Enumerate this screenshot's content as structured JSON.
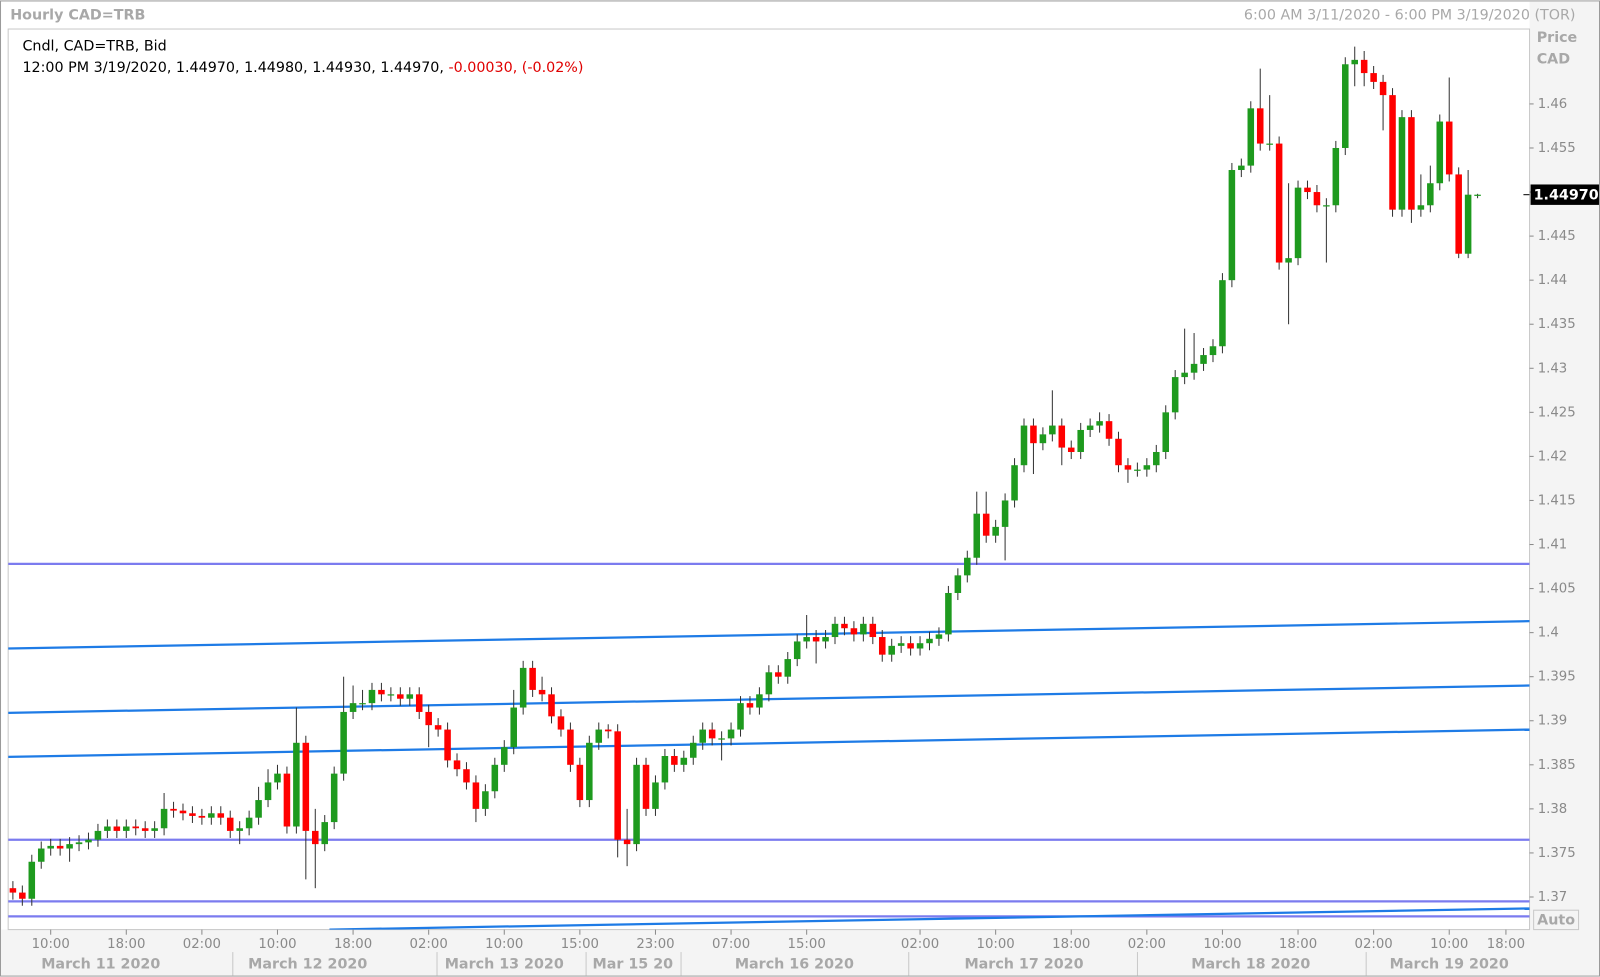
{
  "chart_data": {
    "type": "candlestick",
    "title": "Hourly CAD=TRB",
    "range_text": "6:00 AM 3/11/2020 - 6:00 PM 3/19/2020 (TOR)",
    "legend_text": "Cndl, CAD=TRB, Bid",
    "ohlc_text": "12:00 PM 3/19/2020, 1.44970, 1.44980, 1.44930, 1.44970,",
    "change_text": "-0.00030, (-0.02%)",
    "y_axis_label": [
      "Price",
      "CAD"
    ],
    "auto_button": "Auto",
    "up_color": "#1e9a1e",
    "down_color": "#ff0000",
    "xlim": [
      -0.5,
      160.5
    ],
    "ylim": [
      1.3663,
      1.4685
    ],
    "yticks": [
      1.37,
      1.375,
      1.38,
      1.385,
      1.39,
      1.395,
      1.4,
      1.405,
      1.41,
      1.415,
      1.42,
      1.425,
      1.43,
      1.435,
      1.44,
      1.445,
      1.45,
      1.455,
      1.46
    ],
    "xticks": [
      {
        "value": 4,
        "label": "10:00"
      },
      {
        "value": 12,
        "label": "18:00"
      },
      {
        "value": 20,
        "label": "02:00"
      },
      {
        "value": 28,
        "label": "10:00"
      },
      {
        "value": 36,
        "label": "18:00"
      },
      {
        "value": 44,
        "label": "02:00"
      },
      {
        "value": 52,
        "label": "10:00"
      },
      {
        "value": 60,
        "label": "15:00"
      },
      {
        "value": 68,
        "label": "23:00"
      },
      {
        "value": 76,
        "label": "07:00"
      },
      {
        "value": 84,
        "label": "15:00"
      },
      {
        "value": 96,
        "label": "02:00"
      },
      {
        "value": 104,
        "label": "10:00"
      },
      {
        "value": 112,
        "label": "18:00"
      },
      {
        "value": 120,
        "label": "02:00"
      },
      {
        "value": 128,
        "label": "10:00"
      },
      {
        "value": 136,
        "label": "18:00"
      },
      {
        "value": 144,
        "label": "02:00"
      },
      {
        "value": 152,
        "label": "10:00"
      },
      {
        "value": 158,
        "label": "18:00"
      }
    ],
    "date_labels": [
      {
        "value": 9.3,
        "label": "March 11 2020"
      },
      {
        "value": 31.2,
        "label": "March 12 2020"
      },
      {
        "value": 52,
        "label": "March 13 2020"
      },
      {
        "value": 65.6,
        "label": "Mar 15 20"
      },
      {
        "value": 82.7,
        "label": "March 16 2020"
      },
      {
        "value": 107,
        "label": "March 17 2020"
      },
      {
        "value": 131,
        "label": "March 18 2020"
      },
      {
        "value": 152,
        "label": "March 19 2020"
      }
    ],
    "last_price": {
      "value": 1.4497,
      "label": "1.44970"
    },
    "open": [
      1.371,
      1.3705,
      1.3698,
      1.374,
      1.3755,
      1.3758,
      1.3755,
      1.376,
      1.3762,
      1.3765,
      1.3775,
      1.378,
      1.3775,
      1.378,
      1.3778,
      1.3775,
      1.3778,
      1.38,
      1.3798,
      1.3795,
      1.3792,
      1.379,
      1.3795,
      1.379,
      1.3775,
      1.3778,
      1.379,
      1.381,
      1.383,
      1.384,
      1.378,
      1.3875,
      1.3775,
      1.376,
      1.3785,
      1.384,
      1.391,
      1.392,
      1.392,
      1.3935,
      1.393,
      1.393,
      1.3925,
      1.393,
      1.391,
      1.3895,
      1.389,
      1.3855,
      1.3845,
      1.383,
      1.38,
      1.382,
      1.385,
      1.387,
      1.3915,
      1.396,
      1.3935,
      1.393,
      1.3905,
      1.389,
      1.385,
      1.381,
      1.3875,
      1.389,
      1.3888,
      1.3765,
      1.376,
      1.385,
      1.38,
      1.383,
      1.386,
      1.385,
      1.3858,
      1.3875,
      1.389,
      1.388,
      1.388,
      1.389,
      1.392,
      1.3915,
      1.393,
      1.3955,
      1.395,
      1.397,
      1.399,
      1.3995,
      1.399,
      1.3995,
      1.401,
      1.4005,
      1.3998,
      1.401,
      1.3995,
      1.3975,
      1.3985,
      1.3988,
      1.3982,
      1.3988,
      1.3993,
      1.3998,
      1.4045,
      1.4065,
      1.4085,
      1.4135,
      1.411,
      1.412,
      1.415,
      1.419,
      1.4235,
      1.4215,
      1.4225,
      1.4235,
      1.421,
      1.4205,
      1.423,
      1.4235,
      1.424,
      1.422,
      1.419,
      1.4185,
      1.4185,
      1.419,
      1.4205,
      1.425,
      1.429,
      1.4295,
      1.4305,
      1.4315,
      1.4325,
      1.44,
      1.4525,
      1.453,
      1.4595,
      1.4555,
      1.4555,
      1.442,
      1.4425,
      1.4505,
      1.45,
      1.4485,
      1.4485,
      1.455,
      1.4645,
      1.465,
      1.4635,
      1.4625,
      1.461,
      1.448,
      1.4585,
      1.448,
      1.4485,
      1.451,
      1.458,
      1.452,
      1.443,
      1.4497
    ],
    "high": [
      1.3718,
      1.3713,
      1.3748,
      1.3763,
      1.3766,
      1.3766,
      1.3768,
      1.377,
      1.3773,
      1.3783,
      1.3788,
      1.3788,
      1.3788,
      1.3788,
      1.3786,
      1.3786,
      1.3818,
      1.3808,
      1.3806,
      1.3803,
      1.38,
      1.3803,
      1.3803,
      1.3798,
      1.3786,
      1.3798,
      1.3825,
      1.3845,
      1.385,
      1.3848,
      1.3915,
      1.3883,
      1.38,
      1.3793,
      1.3848,
      1.395,
      1.394,
      1.3935,
      1.3943,
      1.3943,
      1.3938,
      1.3938,
      1.3938,
      1.3938,
      1.3918,
      1.3903,
      1.3898,
      1.3863,
      1.3853,
      1.3838,
      1.3828,
      1.3858,
      1.3878,
      1.3935,
      1.3968,
      1.3968,
      1.395,
      1.3938,
      1.3913,
      1.3898,
      1.3858,
      1.3883,
      1.3898,
      1.3896,
      1.3896,
      1.38,
      1.3858,
      1.3858,
      1.3838,
      1.3868,
      1.3868,
      1.3866,
      1.3883,
      1.3898,
      1.3898,
      1.3888,
      1.3898,
      1.3928,
      1.3928,
      1.3938,
      1.3963,
      1.3963,
      1.3978,
      1.3998,
      1.402,
      1.4003,
      1.4003,
      1.4018,
      1.4018,
      1.4013,
      1.4018,
      1.4018,
      1.4003,
      1.3993,
      1.3996,
      1.3996,
      1.3996,
      1.4001,
      1.4006,
      1.4053,
      1.4073,
      1.4093,
      1.416,
      1.416,
      1.4128,
      1.4158,
      1.4198,
      1.4243,
      1.4243,
      1.4233,
      1.4275,
      1.4243,
      1.4218,
      1.4238,
      1.4243,
      1.425,
      1.4248,
      1.4228,
      1.4198,
      1.4193,
      1.4198,
      1.4213,
      1.4258,
      1.4298,
      1.4345,
      1.434,
      1.4323,
      1.4333,
      1.4408,
      1.4533,
      1.4538,
      1.4603,
      1.464,
      1.461,
      1.4563,
      1.451,
      1.4513,
      1.4513,
      1.4508,
      1.4493,
      1.4558,
      1.4653,
      1.4665,
      1.466,
      1.4643,
      1.4633,
      1.4618,
      1.4593,
      1.4593,
      1.452,
      1.453,
      1.4588,
      1.463,
      1.4528,
      1.4525,
      1.4498
    ],
    "low": [
      1.3697,
      1.369,
      1.369,
      1.3732,
      1.3747,
      1.3747,
      1.374,
      1.3752,
      1.3754,
      1.3757,
      1.3767,
      1.3767,
      1.3767,
      1.377,
      1.3767,
      1.3767,
      1.377,
      1.379,
      1.3787,
      1.3784,
      1.3782,
      1.3782,
      1.3782,
      1.3767,
      1.376,
      1.377,
      1.3782,
      1.3802,
      1.3822,
      1.3772,
      1.3772,
      1.372,
      1.371,
      1.3752,
      1.3777,
      1.3832,
      1.3902,
      1.3912,
      1.3912,
      1.3922,
      1.3922,
      1.3917,
      1.3917,
      1.3902,
      1.387,
      1.3882,
      1.3847,
      1.3837,
      1.3822,
      1.3785,
      1.3792,
      1.3812,
      1.3842,
      1.3862,
      1.3907,
      1.3927,
      1.3922,
      1.3897,
      1.3882,
      1.3842,
      1.3802,
      1.3802,
      1.3867,
      1.388,
      1.3745,
      1.3735,
      1.3752,
      1.3792,
      1.3792,
      1.3822,
      1.3842,
      1.3842,
      1.385,
      1.3867,
      1.3872,
      1.3855,
      1.3872,
      1.3882,
      1.3907,
      1.3907,
      1.3922,
      1.3942,
      1.3942,
      1.3962,
      1.3982,
      1.3965,
      1.3982,
      1.3987,
      1.3997,
      1.399,
      1.399,
      1.3987,
      1.3967,
      1.3967,
      1.3977,
      1.3974,
      1.3974,
      1.398,
      1.3985,
      1.399,
      1.4037,
      1.4057,
      1.4077,
      1.4102,
      1.4102,
      1.4082,
      1.4142,
      1.4182,
      1.418,
      1.4207,
      1.4217,
      1.419,
      1.4197,
      1.4197,
      1.4222,
      1.4227,
      1.4212,
      1.4182,
      1.417,
      1.4177,
      1.4177,
      1.4182,
      1.4197,
      1.4242,
      1.4282,
      1.4287,
      1.4297,
      1.4307,
      1.4317,
      1.4392,
      1.4517,
      1.4522,
      1.4547,
      1.4547,
      1.4412,
      1.435,
      1.4417,
      1.4492,
      1.4477,
      1.442,
      1.4477,
      1.4542,
      1.462,
      1.462,
      1.4617,
      1.457,
      1.4472,
      1.4472,
      1.4465,
      1.4472,
      1.4477,
      1.4502,
      1.4512,
      1.4425,
      1.4425,
      1.4493
    ],
    "close": [
      1.3705,
      1.3698,
      1.374,
      1.3755,
      1.3758,
      1.3755,
      1.376,
      1.3762,
      1.3765,
      1.3775,
      1.378,
      1.3775,
      1.378,
      1.3778,
      1.3775,
      1.3778,
      1.38,
      1.3798,
      1.3795,
      1.3792,
      1.379,
      1.3795,
      1.379,
      1.3775,
      1.3778,
      1.379,
      1.381,
      1.383,
      1.384,
      1.378,
      1.3875,
      1.3775,
      1.376,
      1.3785,
      1.384,
      1.391,
      1.392,
      1.392,
      1.3935,
      1.393,
      1.393,
      1.3925,
      1.393,
      1.391,
      1.3895,
      1.389,
      1.3855,
      1.3845,
      1.383,
      1.38,
      1.382,
      1.385,
      1.387,
      1.3915,
      1.396,
      1.3935,
      1.393,
      1.3905,
      1.389,
      1.385,
      1.381,
      1.3875,
      1.389,
      1.3888,
      1.3765,
      1.376,
      1.385,
      1.38,
      1.383,
      1.386,
      1.385,
      1.3858,
      1.3875,
      1.389,
      1.388,
      1.388,
      1.389,
      1.392,
      1.3915,
      1.393,
      1.3955,
      1.395,
      1.397,
      1.399,
      1.3995,
      1.399,
      1.3995,
      1.401,
      1.4005,
      1.3998,
      1.401,
      1.3995,
      1.3975,
      1.3985,
      1.3988,
      1.3982,
      1.3988,
      1.3993,
      1.3998,
      1.4045,
      1.4065,
      1.4085,
      1.4135,
      1.411,
      1.412,
      1.415,
      1.419,
      1.4235,
      1.4215,
      1.4225,
      1.4235,
      1.421,
      1.4205,
      1.423,
      1.4235,
      1.424,
      1.422,
      1.419,
      1.4185,
      1.4185,
      1.419,
      1.4205,
      1.425,
      1.429,
      1.4295,
      1.4305,
      1.4315,
      1.4325,
      1.44,
      1.4525,
      1.453,
      1.4595,
      1.4555,
      1.4555,
      1.442,
      1.4425,
      1.4505,
      1.45,
      1.4485,
      1.4485,
      1.455,
      1.4645,
      1.465,
      1.4635,
      1.4625,
      1.461,
      1.448,
      1.4585,
      1.448,
      1.4485,
      1.451,
      1.458,
      1.452,
      1.443,
      1.4497,
      1.4497
    ],
    "lines": [
      {
        "color": "#7b7bef",
        "x": [
          -0.5,
          160.5
        ],
        "y": [
          1.4078,
          1.4078
        ]
      },
      {
        "color": "#1e7be6",
        "x": [
          -0.5,
          160.5
        ],
        "y": [
          1.3982,
          1.4013
        ]
      },
      {
        "color": "#1e7be6",
        "x": [
          -0.5,
          160.5
        ],
        "y": [
          1.3909,
          1.394
        ]
      },
      {
        "color": "#1e7be6",
        "x": [
          -0.5,
          160.5
        ],
        "y": [
          1.3859,
          1.389
        ]
      },
      {
        "color": "#7b7bef",
        "x": [
          -0.5,
          160.5
        ],
        "y": [
          1.3765,
          1.3765
        ]
      },
      {
        "color": "#7b7bef",
        "x": [
          -0.5,
          160.5
        ],
        "y": [
          1.3695,
          1.3695
        ]
      },
      {
        "color": "#7b7bef",
        "x": [
          -0.5,
          160.5
        ],
        "y": [
          1.3678,
          1.3678
        ]
      },
      {
        "color": "#1e7be6",
        "x": [
          33.5,
          160.5
        ],
        "y": [
          1.3663,
          1.3687
        ]
      }
    ]
  }
}
